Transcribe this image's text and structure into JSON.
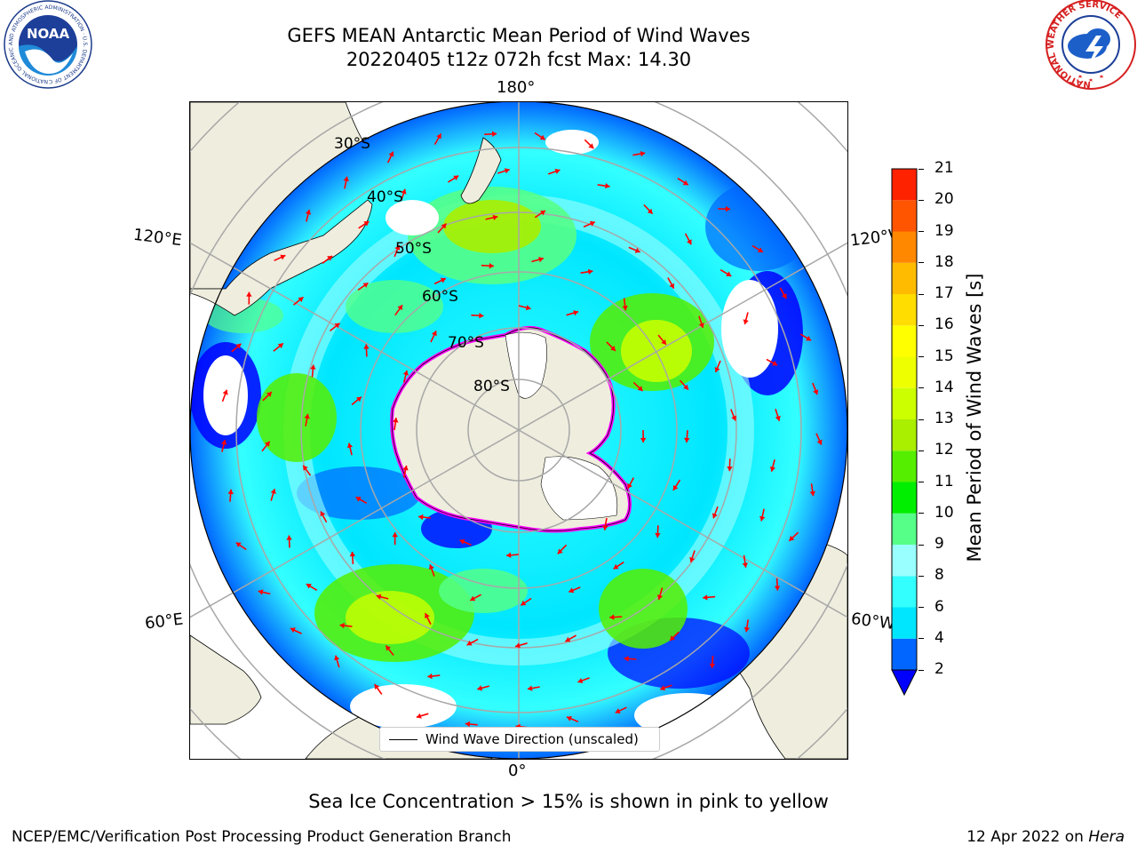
{
  "header": {
    "title_line1": "GEFS MEAN Antarctic Mean Period of Wind Waves",
    "title_line2": "20220405 t12z 072h fcst   Max: 14.30"
  },
  "logos": {
    "left": {
      "name": "noaa-logo",
      "text": "NOAA",
      "ring_text": "NATIONAL OCEANIC AND ATMOSPHERIC ADMINISTRATION · U.S. DEPARTMENT OF COMMERCE"
    },
    "right": {
      "name": "national-weather-service-logo",
      "ring_text": "NATIONAL WEATHER SERVICE"
    }
  },
  "map": {
    "projection": "south-polar-stereographic",
    "longitude_labels": {
      "top": "180°",
      "bottom": "0°",
      "upper_left": "120°E",
      "upper_right": "120°W",
      "lower_left": "60°E",
      "lower_right": "60°W"
    },
    "latitude_labels": [
      "30°S",
      "40°S",
      "50°S",
      "60°S",
      "70°S",
      "80°S"
    ],
    "land_color": "#efedde",
    "arrow_color": "#ff0000",
    "sea_ice_colors": [
      "#ff00ff",
      "#ffa040",
      "#ffff60"
    ],
    "legend_label": "Wind Wave Direction (unscaled)"
  },
  "colorbar": {
    "label": "Mean Period of Wind Waves [s]",
    "ticks": [
      "2",
      "4",
      "6",
      "8",
      "9",
      "10",
      "11",
      "12",
      "13",
      "14",
      "15",
      "16",
      "17",
      "18",
      "19",
      "20",
      "21"
    ],
    "colors": [
      "#0066ff",
      "#00e6ff",
      "#33ffff",
      "#99ffff",
      "#55ff88",
      "#00ee00",
      "#55ee00",
      "#aaee00",
      "#ccff00",
      "#eeff00",
      "#ffff00",
      "#ffdd00",
      "#ffbb00",
      "#ff8800",
      "#ff5500",
      "#ff2200"
    ],
    "under_color": "#0000ff"
  },
  "note": "Sea Ice Concentration > 15% is shown in pink to yellow",
  "footer": {
    "left": "NCEP/EMC/Verification Post Processing Product Generation Branch",
    "right_date": "12 Apr 2022 on",
    "right_machine": "Hera"
  }
}
